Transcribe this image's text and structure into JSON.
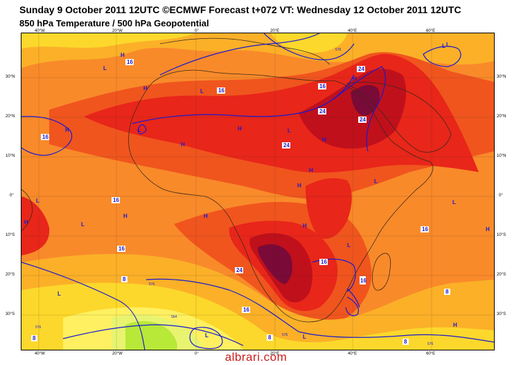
{
  "header": {
    "title_line1": "Sunday 9 October 2011 12UTC ©ECMWF Forecast t+072 VT: Wednesday 12 October 2011 12UTC",
    "title_line2": "850 hPa Temperature / 500 hPa Geopotential"
  },
  "map": {
    "region": "Africa",
    "longitude_ticks": [
      "40°W",
      "20°W",
      "0°",
      "20°E",
      "40°E",
      "60°E"
    ],
    "latitude_ticks": [
      "30°N",
      "20°N",
      "10°N",
      "0°",
      "10°S",
      "20°S",
      "30°S"
    ],
    "contour_labels": [
      {
        "text": "16"
      },
      {
        "text": "16"
      },
      {
        "text": "16"
      },
      {
        "text": "16"
      },
      {
        "text": "16"
      },
      {
        "text": "16"
      },
      {
        "text": "16"
      },
      {
        "text": "16"
      },
      {
        "text": "16"
      },
      {
        "text": "16"
      },
      {
        "text": "24"
      },
      {
        "text": "24"
      },
      {
        "text": "24"
      },
      {
        "text": "24"
      },
      {
        "text": "24"
      },
      {
        "text": "8"
      },
      {
        "text": "8"
      },
      {
        "text": "8"
      },
      {
        "text": "8"
      },
      {
        "text": "8"
      }
    ],
    "geopotential_labels": [
      {
        "text": "576"
      },
      {
        "text": "576"
      },
      {
        "text": "576"
      },
      {
        "text": "576"
      },
      {
        "text": "576"
      },
      {
        "text": "564"
      }
    ],
    "pressure_centers": [
      {
        "text": "H"
      },
      {
        "text": "L"
      },
      {
        "text": "L"
      },
      {
        "text": "H"
      },
      {
        "text": "L"
      },
      {
        "text": "H"
      },
      {
        "text": "H"
      },
      {
        "text": "H"
      },
      {
        "text": "L"
      },
      {
        "text": "H"
      },
      {
        "text": "L"
      },
      {
        "text": "L"
      },
      {
        "text": "H"
      },
      {
        "text": "L"
      },
      {
        "text": "H"
      },
      {
        "text": "H"
      },
      {
        "text": "L"
      },
      {
        "text": "L"
      },
      {
        "text": "H"
      },
      {
        "text": "H"
      },
      {
        "text": "L"
      },
      {
        "text": "L"
      },
      {
        "text": "L"
      },
      {
        "text": "L"
      },
      {
        "text": "H"
      },
      {
        "text": "H"
      },
      {
        "text": "H"
      },
      {
        "text": "L"
      },
      {
        "text": "H"
      }
    ],
    "colors": {
      "band_10": "#f98a2a",
      "band_16": "#f0551e",
      "band_20": "#e8261a",
      "band_24": "#c0101c",
      "band_28": "#7a0a38",
      "band_6": "#fbb028",
      "band_4": "#fcd82c",
      "band_2": "#fef060",
      "band_0": "#e8f470",
      "band_m2": "#b8e838",
      "contour": "#1a1ad0",
      "coast": "#3a2a1a"
    }
  },
  "watermark": "albrari.com"
}
